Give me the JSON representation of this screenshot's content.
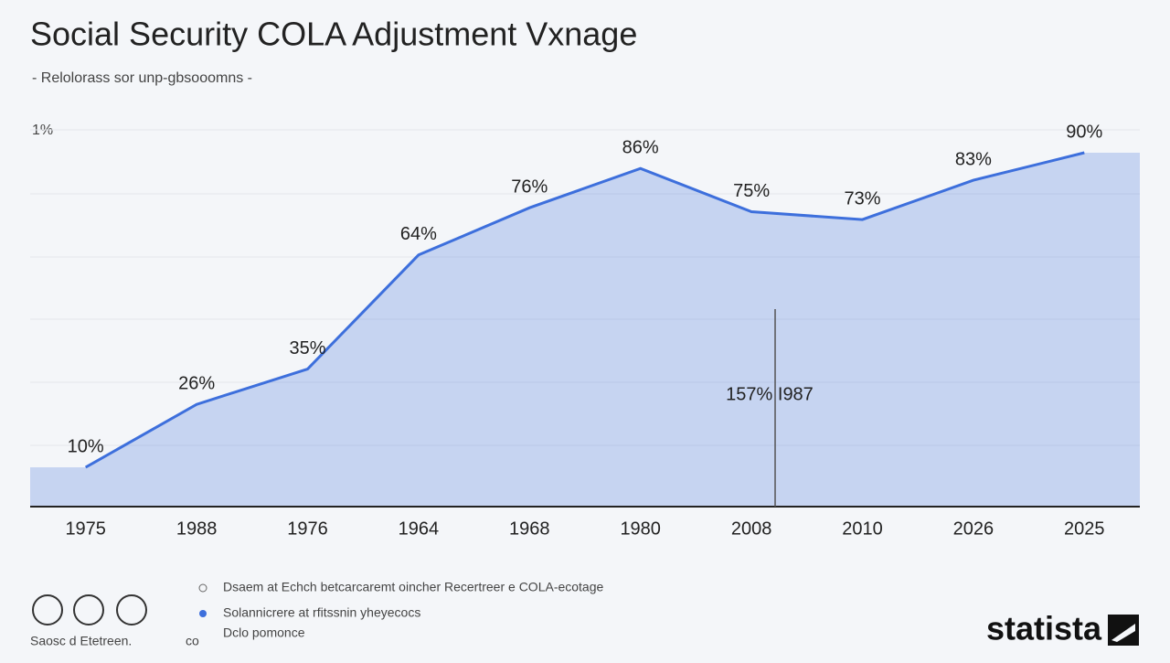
{
  "chart_data": {
    "type": "area",
    "title": "Social Security COLA Adjustment Vxnage",
    "subtitle": "- Relolorass sor unp-gbsooomns -",
    "y_label": "1%",
    "categories": [
      "1975",
      "1988",
      "1976",
      "1964",
      "1968",
      "1980",
      "2008",
      "2010",
      "2026",
      "2025"
    ],
    "series": [
      {
        "name": "COLA",
        "color": "#3d6fdc",
        "values": [
          10,
          26,
          35,
          64,
          76,
          86,
          75,
          73,
          83,
          90
        ],
        "value_labels": [
          "10%",
          "26%",
          "35%",
          "64%",
          "76%",
          "86%",
          "75%",
          "73%",
          "83%",
          "90%"
        ]
      }
    ],
    "ylim": [
      0,
      100
    ],
    "annotation": "157% I987"
  },
  "footer": {
    "notes": [
      "Dsaem at Echch betcarcaremt oincher Recertreer e COLA-ecotage",
      "Solannicrere at rfitssnin yheyecocs",
      "Dclo pomonce"
    ],
    "source": "Saosc d Etetreen.",
    "source_suffix": "co",
    "brand": "statista"
  }
}
